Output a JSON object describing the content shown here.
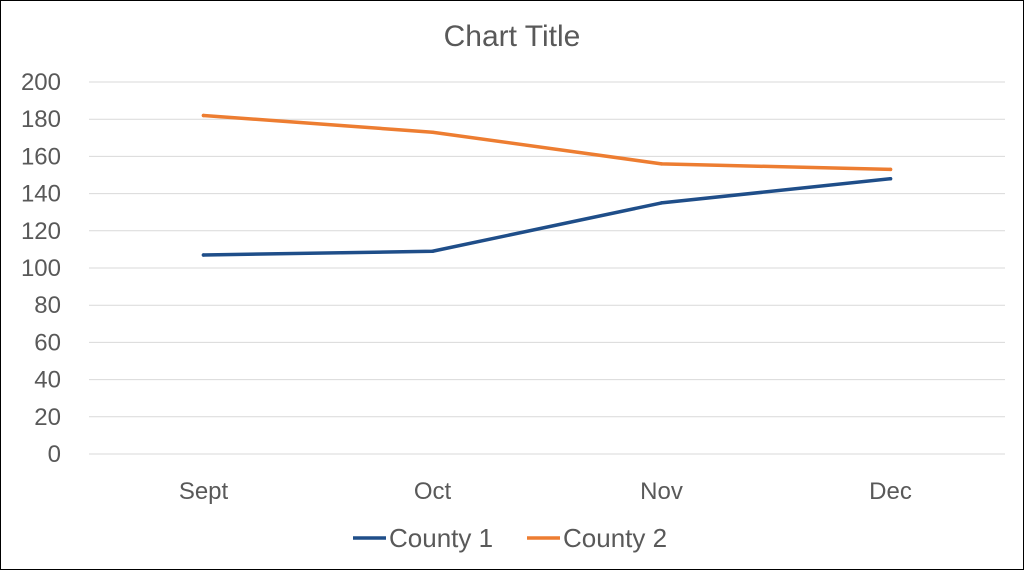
{
  "chart_data": {
    "type": "line",
    "title": "Chart Title",
    "xlabel": "",
    "ylabel": "",
    "categories": [
      "Sept",
      "Oct",
      "Nov",
      "Dec"
    ],
    "ylim": [
      0,
      200
    ],
    "yticks": [
      0,
      20,
      40,
      60,
      80,
      100,
      120,
      140,
      160,
      180,
      200
    ],
    "grid": true,
    "legend_position": "bottom",
    "series": [
      {
        "name": "County 1",
        "color": "#1f4e89",
        "values": [
          107,
          109,
          135,
          148
        ]
      },
      {
        "name": "County 2",
        "color": "#ed7d31",
        "values": [
          182,
          173,
          156,
          153
        ]
      }
    ]
  }
}
